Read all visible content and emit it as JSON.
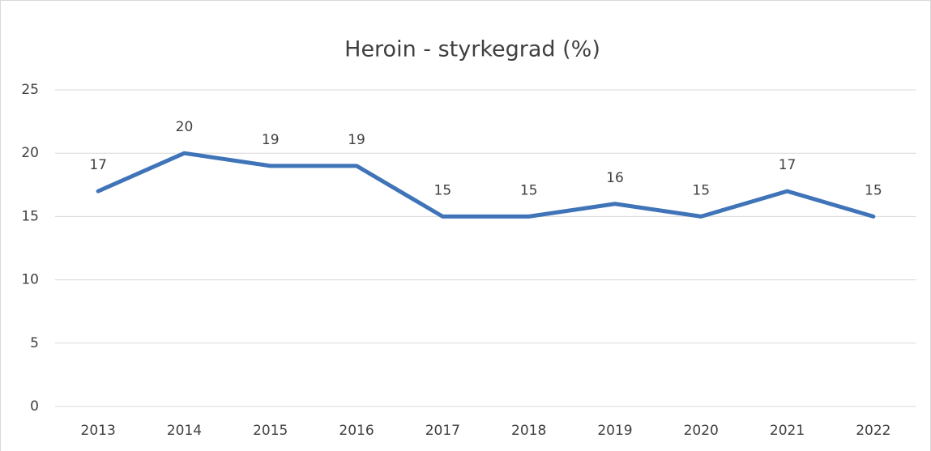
{
  "chart_data": {
    "type": "line",
    "title": "Heroin - styrkegrad (%)",
    "categories": [
      "2013",
      "2014",
      "2015",
      "2016",
      "2017",
      "2018",
      "2019",
      "2020",
      "2021",
      "2022"
    ],
    "values": [
      17,
      20,
      19,
      19,
      15,
      15,
      16,
      15,
      17,
      15
    ],
    "color": "#4074b8",
    "ylim": [
      0,
      25
    ],
    "yticks": [
      0,
      5,
      10,
      15,
      20,
      25
    ],
    "grid": true
  }
}
